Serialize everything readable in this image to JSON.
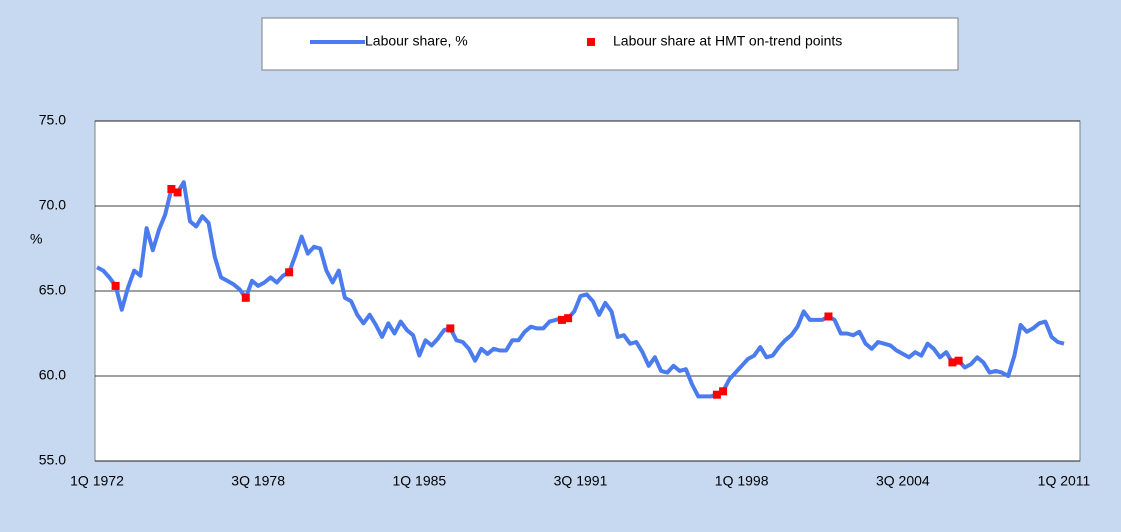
{
  "chart_data": {
    "type": "line",
    "y_axis_label": "%",
    "ylim": [
      55,
      75
    ],
    "yticks": [
      {
        "value": 55,
        "label": "55.0"
      },
      {
        "value": 60,
        "label": "60.0"
      },
      {
        "value": 65,
        "label": "65.0"
      },
      {
        "value": 70,
        "label": "70.0"
      },
      {
        "value": 75,
        "label": "75.0"
      }
    ],
    "grid": true,
    "legend": "top",
    "categories": [
      "1Q 1972",
      null,
      null,
      null,
      null,
      null,
      null,
      null,
      null,
      null,
      null,
      null,
      null,
      null,
      null,
      null,
      null,
      null,
      null,
      null,
      null,
      null,
      null,
      null,
      null,
      null,
      "3Q 1978",
      null,
      null,
      null,
      null,
      null,
      null,
      null,
      null,
      null,
      null,
      null,
      null,
      null,
      null,
      null,
      null,
      null,
      null,
      null,
      null,
      null,
      null,
      null,
      null,
      null,
      "1Q 1985",
      null,
      null,
      null,
      null,
      null,
      null,
      null,
      null,
      null,
      null,
      null,
      null,
      null,
      null,
      null,
      null,
      null,
      null,
      null,
      null,
      null,
      null,
      null,
      null,
      null,
      "3Q 1991",
      null,
      null,
      null,
      null,
      null,
      null,
      null,
      null,
      null,
      null,
      null,
      null,
      null,
      null,
      null,
      null,
      null,
      null,
      null,
      null,
      null,
      null,
      null,
      null,
      null,
      "1Q 1998",
      null,
      null,
      null,
      null,
      null,
      null,
      null,
      null,
      null,
      null,
      null,
      null,
      null,
      null,
      null,
      null,
      null,
      null,
      null,
      null,
      null,
      null,
      null,
      null,
      null,
      "3Q 2004",
      null,
      null,
      null,
      null,
      null,
      null,
      null,
      null,
      null,
      null,
      null,
      null,
      null,
      null,
      null,
      null,
      null,
      null,
      null,
      null,
      null,
      null,
      null,
      null,
      null,
      "1Q 2011"
    ],
    "series": [
      {
        "name": "Labour share, %",
        "color": "#4a7bef",
        "style": "line",
        "values": [
          66.4,
          66.2,
          65.8,
          65.3,
          63.9,
          65.2,
          66.2,
          65.9,
          68.7,
          67.4,
          68.6,
          69.5,
          71.0,
          70.8,
          71.4,
          69.1,
          68.8,
          69.4,
          69.0,
          67.0,
          65.8,
          65.6,
          65.4,
          65.1,
          64.6,
          65.6,
          65.3,
          65.5,
          65.8,
          65.5,
          65.9,
          66.1,
          67.1,
          68.2,
          67.2,
          67.6,
          67.5,
          66.2,
          65.5,
          66.2,
          64.6,
          64.4,
          63.6,
          63.1,
          63.6,
          63.0,
          62.3,
          63.1,
          62.5,
          63.2,
          62.7,
          62.4,
          61.2,
          62.1,
          61.8,
          62.2,
          62.7,
          62.8,
          62.1,
          62.0,
          61.6,
          60.9,
          61.6,
          61.3,
          61.6,
          61.5,
          61.5,
          62.1,
          62.1,
          62.6,
          62.9,
          62.8,
          62.8,
          63.2,
          63.3,
          63.4,
          63.4,
          63.8,
          64.7,
          64.8,
          64.4,
          63.6,
          64.3,
          63.8,
          62.3,
          62.4,
          61.9,
          62.0,
          61.4,
          60.6,
          61.1,
          60.3,
          60.2,
          60.6,
          60.3,
          60.4,
          59.5,
          58.8,
          58.8,
          58.8,
          58.9,
          59.1,
          59.8,
          60.2,
          60.6,
          61.0,
          61.2,
          61.7,
          61.1,
          61.2,
          61.7,
          62.1,
          62.4,
          62.9,
          63.8,
          63.3,
          63.3,
          63.3,
          63.5,
          63.3,
          62.5,
          62.5,
          62.4,
          62.6,
          61.9,
          61.6,
          62.0,
          61.9,
          61.8,
          61.5,
          61.3,
          61.1,
          61.4,
          61.2,
          61.9,
          61.6,
          61.1,
          61.4,
          60.8,
          60.9,
          60.5,
          60.7,
          61.1,
          60.8,
          60.2,
          60.3,
          60.2,
          60.0,
          61.2,
          63.0,
          62.6,
          62.8,
          63.1,
          63.2,
          62.3,
          62.0,
          61.9
        ]
      },
      {
        "name": "Labour share at HMT on-trend points",
        "color": "#ff0000",
        "style": "marker",
        "values": [
          null,
          null,
          null,
          65.3,
          null,
          null,
          null,
          null,
          null,
          null,
          null,
          null,
          71.0,
          70.8,
          null,
          null,
          null,
          null,
          null,
          null,
          null,
          null,
          null,
          null,
          64.6,
          null,
          null,
          null,
          null,
          null,
          null,
          66.1,
          null,
          null,
          null,
          null,
          null,
          null,
          null,
          null,
          null,
          null,
          null,
          null,
          null,
          null,
          null,
          null,
          null,
          null,
          null,
          null,
          null,
          null,
          null,
          null,
          null,
          62.8,
          null,
          null,
          null,
          null,
          null,
          null,
          null,
          null,
          null,
          null,
          null,
          null,
          null,
          null,
          null,
          null,
          null,
          63.3,
          63.4,
          null,
          null,
          null,
          null,
          null,
          null,
          null,
          null,
          null,
          null,
          null,
          null,
          null,
          null,
          null,
          null,
          null,
          null,
          null,
          null,
          null,
          null,
          null,
          58.9,
          59.1,
          null,
          null,
          null,
          null,
          null,
          null,
          null,
          null,
          null,
          null,
          null,
          null,
          null,
          null,
          null,
          null,
          63.5,
          null,
          null,
          null,
          null,
          null,
          null,
          null,
          null,
          null,
          null,
          null,
          null,
          null,
          null,
          null,
          null,
          null,
          null,
          null,
          60.8,
          60.9,
          null,
          null,
          null,
          null,
          null,
          null,
          null,
          null,
          null,
          null,
          null,
          null,
          null,
          null,
          null,
          null,
          null
        ]
      }
    ]
  }
}
